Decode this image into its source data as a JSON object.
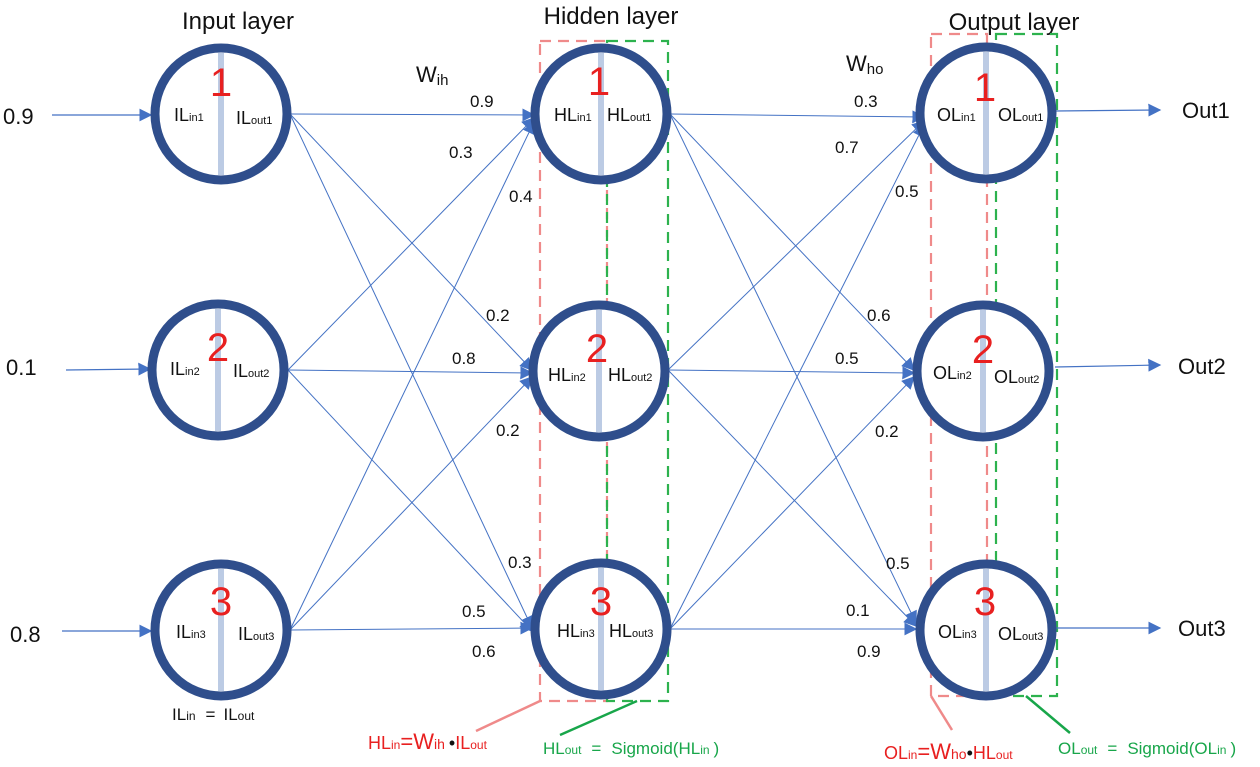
{
  "layers": {
    "input_title": "Input layer",
    "hidden_title": "Hidden layer",
    "output_title": "Output layer"
  },
  "weight_labels": {
    "wih": {
      "main": "W",
      "sub": "ih"
    },
    "who": {
      "main": "W",
      "sub": "ho"
    }
  },
  "inputs": [
    "0.9",
    "0.1",
    "0.8"
  ],
  "outputs": [
    "Out1",
    "Out2",
    "Out3"
  ],
  "node_numbers": [
    "1",
    "2",
    "3"
  ],
  "input_nodes": [
    {
      "in_main": "IL",
      "in_sub": "in1",
      "out_main": "IL",
      "out_sub": "out1"
    },
    {
      "in_main": "IL",
      "in_sub": "in2",
      "out_main": "IL",
      "out_sub": "out2"
    },
    {
      "in_main": "IL",
      "in_sub": "in3",
      "out_main": "IL",
      "out_sub": "out3"
    }
  ],
  "hidden_nodes": [
    {
      "in_main": "HL",
      "in_sub": "in1",
      "out_main": "HL",
      "out_sub": "out1"
    },
    {
      "in_main": "HL",
      "in_sub": "in2",
      "out_main": "HL",
      "out_sub": "out2"
    },
    {
      "in_main": "HL",
      "in_sub": "in3",
      "out_main": "HL",
      "out_sub": "out3"
    }
  ],
  "output_nodes": [
    {
      "in_main": "OL",
      "in_sub": "in1",
      "out_main": "OL",
      "out_sub": "out1"
    },
    {
      "in_main": "OL",
      "in_sub": "in2",
      "out_main": "OL",
      "out_sub": "out2"
    },
    {
      "in_main": "OL",
      "in_sub": "in3",
      "out_main": "OL",
      "out_sub": "out3"
    }
  ],
  "weights_ih": {
    "h1": [
      "0.9",
      "0.3",
      "0.4"
    ],
    "h2": [
      "0.2",
      "0.8",
      "0.2"
    ],
    "h3": [
      "0.3",
      "0.5",
      "0.6"
    ]
  },
  "weights_ho": {
    "o1": [
      "0.3",
      "0.7",
      "0.5"
    ],
    "o2": [
      "0.6",
      "0.5",
      "0.2"
    ],
    "o3": [
      "0.5",
      "0.1",
      "0.9"
    ]
  },
  "formulas": {
    "il": {
      "a_main": "IL",
      "a_sub": "in",
      "eq": "=",
      "b_main": "IL",
      "b_sub": "out"
    },
    "hl_in": {
      "a_main": "HL",
      "a_sub": "in",
      "eq": "=",
      "w_main": "W",
      "w_sub": "ih",
      "dot": "•",
      "b_main": "IL",
      "b_sub": "out"
    },
    "hl_out": {
      "a_main": "HL",
      "a_sub": "out",
      "eq": "=",
      "fn": "Sigmoid(",
      "b_main": "HL",
      "b_sub": "in",
      "close": ")"
    },
    "ol_in": {
      "a_main": "OL",
      "a_sub": "in",
      "eq": "=",
      "w_main": "W",
      "w_sub": "ho",
      "dot": "•",
      "b_main": "HL",
      "b_sub": "out"
    },
    "ol_out": {
      "a_main": "OL",
      "a_sub": "out",
      "eq": "=",
      "fn": "Sigmoid(",
      "b_main": "OL",
      "b_sub": "in",
      "close": ")"
    }
  },
  "colors": {
    "node_stroke": "#2f4e8c",
    "line": "#4472c4",
    "divider": "#bccbe4",
    "red_dash": "#ef8a8a",
    "green_dash": "#2db24e",
    "red_text": "#e82020",
    "green_text": "#18a64a"
  }
}
